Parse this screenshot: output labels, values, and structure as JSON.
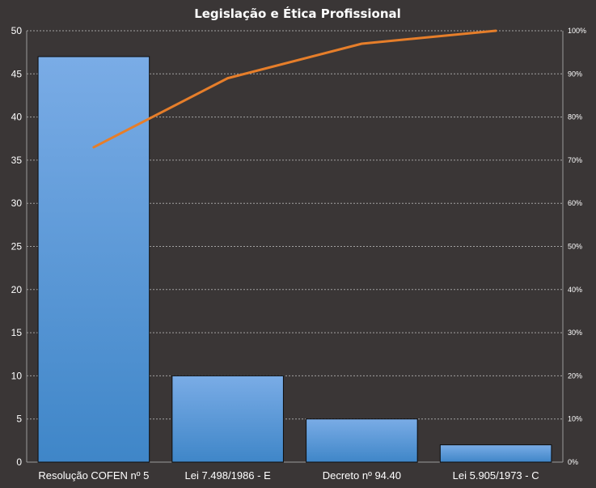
{
  "chart_data": {
    "type": "bar",
    "title": "Legislação  e Ética Profissional",
    "categories": [
      "Resolução COFEN nº 5",
      "Lei 7.498/1986  - E",
      "Decreto nº 94.40",
      "Lei 5.905/1973  - C"
    ],
    "values": [
      47,
      10,
      5,
      2
    ],
    "ylim": [
      0,
      50
    ],
    "y_ticks": [
      "0",
      "5",
      "10",
      "15",
      "20",
      "25",
      "30",
      "35",
      "40",
      "45",
      "50"
    ],
    "secondary_axis": {
      "ylim": [
        0,
        100
      ],
      "ticks": [
        "0%",
        "10%",
        "20%",
        "30%",
        "40%",
        "50%",
        "60%",
        "70%",
        "80%",
        "90%",
        "100%"
      ]
    },
    "cumulative_line": {
      "values": [
        73,
        89,
        97,
        100
      ],
      "color": "#e67e2a"
    },
    "bar_color_top": "#7aace6",
    "bar_color_bottom": "#3f86c8",
    "grid": true,
    "legend": "none"
  }
}
